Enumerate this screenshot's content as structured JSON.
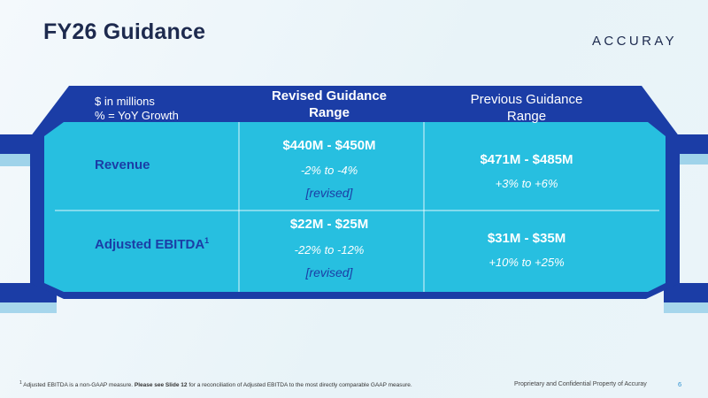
{
  "slide": {
    "title": "FY26 Guidance",
    "logo_text": "ACCURAY",
    "page_number": "6",
    "footer_confidential": "Proprietary and Confidential Property of Accuray",
    "footnote_marker": "1",
    "footnote_text": "Adjusted EBITDA is a non-GAAP measure.",
    "footnote_bold": "Please see Slide 12",
    "footnote_rest": "for a reconciliation of Adjusted EBITDA to the most directly comparable GAAP measure."
  },
  "table": {
    "header": {
      "units_line1": "$ in millions",
      "units_line2": "% = YoY Growth",
      "revised_line1": "Revised Guidance",
      "revised_line2": "Range",
      "previous_line1": "Previous Guidance",
      "previous_line2": "Range"
    },
    "rows": [
      {
        "label": "Revenue",
        "revised_range": "$440M - $450M",
        "revised_growth": "-2% to -4%",
        "revised_note": "[revised]",
        "previous_range": "$471M - $485M",
        "previous_growth": "+3% to +6%"
      },
      {
        "label": "Adjusted EBITDA",
        "label_sup": "1",
        "revised_range": "$22M - $25M",
        "revised_growth": "-22% to -12%",
        "revised_note": "[revised]",
        "previous_range": "$31M - $35M",
        "previous_growth": "+10% to +25%"
      }
    ]
  },
  "colors": {
    "dark_blue": "#1b3da6",
    "light_cyan": "#27bfe0",
    "title_navy": "#1d2a4e"
  }
}
